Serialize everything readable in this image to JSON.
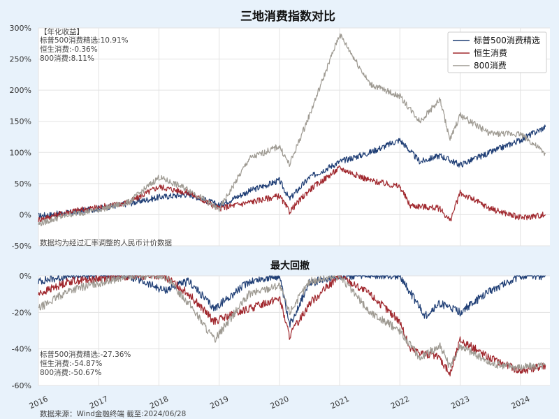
{
  "title": "三地消费指数对比",
  "subtitle": "最大回撤",
  "source": "数据来源：Wind金融终端 截至:2024/06/28",
  "colors": {
    "sp500": "#1f3e75",
    "hs": "#a0282e",
    "csi800": "#9e9a92",
    "background": "#e8f2fb"
  },
  "chart_data": [
    {
      "type": "line",
      "title": "三地消费指数对比",
      "x_range": [
        "2016-01-01",
        "2024-06-28"
      ],
      "y_unit": "%",
      "ylim": [
        -50,
        300
      ],
      "yticks": [
        "300%",
        "250%",
        "200%",
        "150%",
        "100%",
        "50%",
        "0%",
        "-50%"
      ],
      "grid": true,
      "legend_position": "top-right",
      "note": "数据均为经过汇率调整的人民币计价数据",
      "annual_return_header": "【年化收益】",
      "annual_returns": [
        "标普500消费精选:10.91%",
        "恒生消费:-0.36%",
        "800消费:8.11%"
      ],
      "series": [
        {
          "name": "标普500消费精选",
          "color": "#1f3e75",
          "points": [
            [
              "2016-01",
              -2
            ],
            [
              "2016-07",
              3
            ],
            [
              "2017-01",
              10
            ],
            [
              "2017-07",
              18
            ],
            [
              "2018-01",
              28
            ],
            [
              "2018-07",
              33
            ],
            [
              "2019-01",
              15
            ],
            [
              "2019-07",
              38
            ],
            [
              "2020-01",
              55
            ],
            [
              "2020-03",
              25
            ],
            [
              "2020-07",
              60
            ],
            [
              "2021-01",
              85
            ],
            [
              "2021-07",
              100
            ],
            [
              "2022-01",
              120
            ],
            [
              "2022-05",
              85
            ],
            [
              "2022-09",
              95
            ],
            [
              "2023-01",
              80
            ],
            [
              "2023-07",
              100
            ],
            [
              "2024-01",
              120
            ],
            [
              "2024-06",
              141
            ]
          ]
        },
        {
          "name": "恒生消费",
          "color": "#a0282e",
          "points": [
            [
              "2016-01",
              -8
            ],
            [
              "2016-07",
              5
            ],
            [
              "2017-01",
              12
            ],
            [
              "2017-07",
              20
            ],
            [
              "2018-01",
              45
            ],
            [
              "2018-07",
              35
            ],
            [
              "2019-01",
              10
            ],
            [
              "2019-07",
              20
            ],
            [
              "2020-01",
              30
            ],
            [
              "2020-03",
              5
            ],
            [
              "2020-07",
              40
            ],
            [
              "2021-01",
              75
            ],
            [
              "2021-07",
              55
            ],
            [
              "2022-01",
              45
            ],
            [
              "2022-03",
              15
            ],
            [
              "2022-09",
              10
            ],
            [
              "2022-11",
              -10
            ],
            [
              "2023-01",
              35
            ],
            [
              "2023-07",
              10
            ],
            [
              "2024-01",
              -5
            ],
            [
              "2024-06",
              0
            ]
          ]
        },
        {
          "name": "800消费",
          "color": "#9e9a92",
          "points": [
            [
              "2016-01",
              -15
            ],
            [
              "2016-07",
              0
            ],
            [
              "2017-01",
              8
            ],
            [
              "2017-07",
              20
            ],
            [
              "2018-01",
              60
            ],
            [
              "2018-07",
              40
            ],
            [
              "2019-01",
              8
            ],
            [
              "2019-07",
              90
            ],
            [
              "2020-01",
              110
            ],
            [
              "2020-03",
              80
            ],
            [
              "2020-07",
              160
            ],
            [
              "2021-01",
              290
            ],
            [
              "2021-07",
              210
            ],
            [
              "2022-01",
              190
            ],
            [
              "2022-05",
              150
            ],
            [
              "2022-09",
              185
            ],
            [
              "2022-11",
              120
            ],
            [
              "2023-01",
              160
            ],
            [
              "2023-07",
              130
            ],
            [
              "2024-01",
              130
            ],
            [
              "2024-06",
              98
            ]
          ]
        }
      ]
    },
    {
      "type": "area",
      "title": "最大回撤",
      "x_range": [
        "2016-01-01",
        "2024-06-28"
      ],
      "y_unit": "%",
      "ylim": [
        -60,
        0
      ],
      "yticks": [
        "0%",
        "-20%",
        "-40%",
        "-60%"
      ],
      "xticks": [
        "2016",
        "2017",
        "2018",
        "2019",
        "2020",
        "2021",
        "2022",
        "2023",
        "2024"
      ],
      "grid": true,
      "max_drawdowns": [
        "标普500消费精选:-27.36%",
        "恒生消费:-54.87%",
        "800消费:-50.67%"
      ],
      "series": [
        {
          "name": "标普500消费精选",
          "color": "#1f3e75",
          "points": [
            [
              "2016-01",
              -3
            ],
            [
              "2016-07",
              0
            ],
            [
              "2017-07",
              0
            ],
            [
              "2018-02",
              -8
            ],
            [
              "2018-07",
              -3
            ],
            [
              "2018-12",
              -18
            ],
            [
              "2019-07",
              -3
            ],
            [
              "2020-01",
              0
            ],
            [
              "2020-03",
              -27
            ],
            [
              "2020-07",
              -4
            ],
            [
              "2021-01",
              0
            ],
            [
              "2021-07",
              0
            ],
            [
              "2022-01",
              0
            ],
            [
              "2022-06",
              -22
            ],
            [
              "2022-09",
              -15
            ],
            [
              "2023-01",
              -20
            ],
            [
              "2023-07",
              -8
            ],
            [
              "2024-01",
              0
            ],
            [
              "2024-06",
              0
            ]
          ]
        },
        {
          "name": "恒生消费",
          "color": "#a0282e",
          "points": [
            [
              "2016-01",
              -10
            ],
            [
              "2016-07",
              -3
            ],
            [
              "2017-07",
              0
            ],
            [
              "2018-02",
              0
            ],
            [
              "2018-07",
              -10
            ],
            [
              "2018-12",
              -25
            ],
            [
              "2019-07",
              -18
            ],
            [
              "2020-01",
              -12
            ],
            [
              "2020-03",
              -33
            ],
            [
              "2020-07",
              -15
            ],
            [
              "2021-01",
              0
            ],
            [
              "2021-07",
              -10
            ],
            [
              "2022-01",
              -25
            ],
            [
              "2022-03",
              -40
            ],
            [
              "2022-09",
              -45
            ],
            [
              "2022-11",
              -54
            ],
            [
              "2023-01",
              -35
            ],
            [
              "2023-07",
              -45
            ],
            [
              "2024-01",
              -52
            ],
            [
              "2024-06",
              -49
            ]
          ]
        },
        {
          "name": "800消费",
          "color": "#9e9a92",
          "points": [
            [
              "2016-01",
              -18
            ],
            [
              "2016-07",
              -8
            ],
            [
              "2017-07",
              0
            ],
            [
              "2018-02",
              0
            ],
            [
              "2018-07",
              -15
            ],
            [
              "2018-12",
              -35
            ],
            [
              "2019-07",
              -10
            ],
            [
              "2020-01",
              -5
            ],
            [
              "2020-03",
              -20
            ],
            [
              "2020-07",
              -3
            ],
            [
              "2021-01",
              0
            ],
            [
              "2021-07",
              -20
            ],
            [
              "2022-01",
              -30
            ],
            [
              "2022-05",
              -45
            ],
            [
              "2022-09",
              -38
            ],
            [
              "2022-11",
              -50
            ],
            [
              "2023-01",
              -38
            ],
            [
              "2023-07",
              -48
            ],
            [
              "2024-01",
              -50
            ],
            [
              "2024-06",
              -49
            ]
          ]
        }
      ]
    }
  ]
}
